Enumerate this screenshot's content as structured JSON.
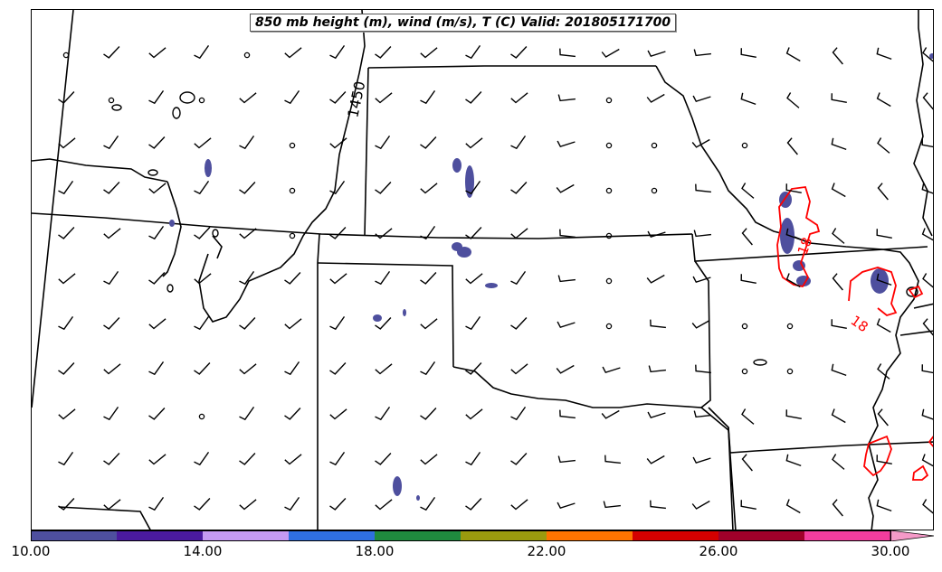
{
  "title": "850 mb height (m), wind (m/s), T (C) Valid: 201805171700",
  "height_contour_label": "1450",
  "temperature_contour_labels": [
    "18",
    "18"
  ],
  "colorbar": {
    "ticks": [
      "10.00",
      "14.00",
      "18.00",
      "22.00",
      "26.00",
      "30.00"
    ],
    "min": 10,
    "max": 30,
    "bins": [
      {
        "from": 10,
        "to": 12,
        "color": "#4e4f9e"
      },
      {
        "from": 12,
        "to": 14,
        "color": "#4a1a9e"
      },
      {
        "from": 14,
        "to": 16,
        "color": "#c59af2"
      },
      {
        "from": 16,
        "to": 18,
        "color": "#2f6fe0"
      },
      {
        "from": 18,
        "to": 20,
        "color": "#1f8a3e"
      },
      {
        "from": 20,
        "to": 22,
        "color": "#9b9b0e"
      },
      {
        "from": 22,
        "to": 24,
        "color": "#ff7400"
      },
      {
        "from": 24,
        "to": 26,
        "color": "#d40000"
      },
      {
        "from": 26,
        "to": 28,
        "color": "#a0002a"
      },
      {
        "from": 28,
        "to": 30,
        "color": "#f23d9e"
      }
    ],
    "extend_color": "#f59ac8"
  },
  "colors": {
    "boundary": "#000000",
    "temperature_contour": "#ff0000",
    "shading": "#4e4f9e",
    "wind_barb": "#000000"
  }
}
